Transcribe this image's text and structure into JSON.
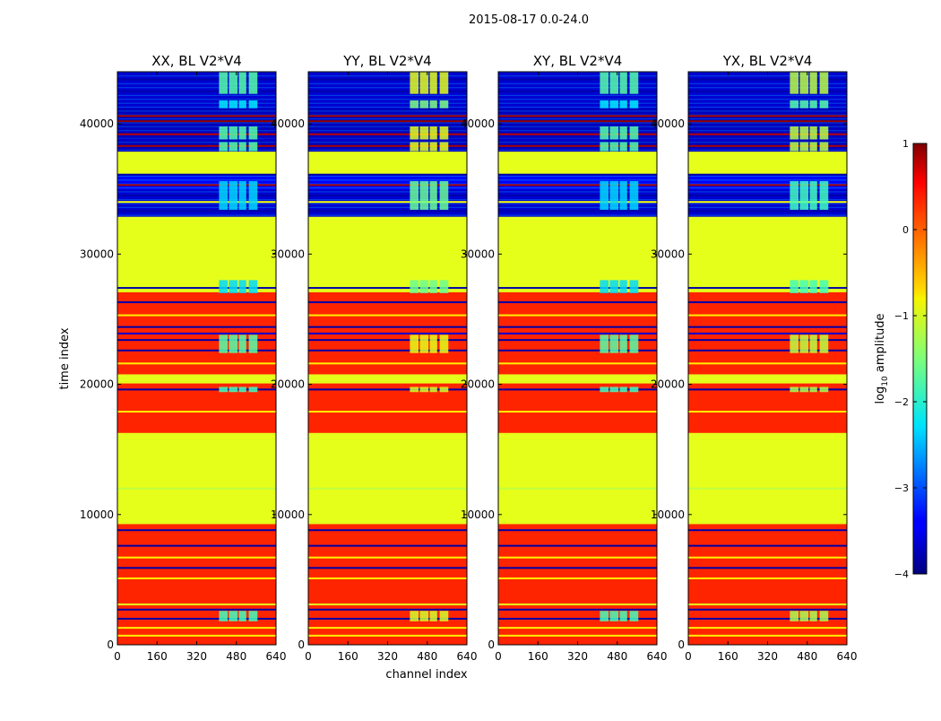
{
  "suptitle": "2015-08-17 0.0-24.0",
  "xlabel": "channel index",
  "ylabel": "time index",
  "chart_data": {
    "type": "heatmap",
    "xlim": [
      0,
      640
    ],
    "ylim": [
      0,
      44000
    ],
    "xticks": [
      0,
      160,
      320,
      480,
      640
    ],
    "yticks": [
      0,
      10000,
      20000,
      30000,
      40000
    ],
    "colorbar": {
      "label": "log",
      "label_sub": "10",
      "label_rest": " amplitude",
      "range": [
        -4,
        1
      ],
      "ticks": [
        "−4",
        "−3",
        "−2",
        "−1",
        "0",
        "1"
      ]
    },
    "bands": [
      {
        "y0": 0,
        "y1": 9300,
        "level": 0.2
      },
      {
        "y0": 9300,
        "y1": 16300,
        "level": -1.0
      },
      {
        "y0": 16300,
        "y1": 20100,
        "level": 0.2
      },
      {
        "y0": 20100,
        "y1": 20800,
        "level": -1.0
      },
      {
        "y0": 20800,
        "y1": 27100,
        "level": 0.2
      },
      {
        "y0": 27100,
        "y1": 28000,
        "level": -1.0
      },
      {
        "y0": 28000,
        "y1": 32900,
        "level": -1.0
      },
      {
        "y0": 32900,
        "y1": 35000,
        "level": -3.6
      },
      {
        "y0": 35000,
        "y1": 36100,
        "level": -3.4
      },
      {
        "y0": 36100,
        "y1": 37900,
        "level": -1.0
      },
      {
        "y0": 37900,
        "y1": 41200,
        "level": -3.7
      },
      {
        "y0": 41200,
        "y1": 44000,
        "level": -3.6
      }
    ],
    "lines": [
      {
        "y": 700,
        "level": -0.8
      },
      {
        "y": 1300,
        "level": -0.8
      },
      {
        "y": 2000,
        "level": -3.8
      },
      {
        "y": 2700,
        "level": -3.8
      },
      {
        "y": 3100,
        "level": -1.0
      },
      {
        "y": 5100,
        "level": -0.8
      },
      {
        "y": 5900,
        "level": -3.8
      },
      {
        "y": 6700,
        "level": -0.8
      },
      {
        "y": 7600,
        "level": -3.8
      },
      {
        "y": 8800,
        "level": -3.8
      },
      {
        "y": 12000,
        "level": -1.2
      },
      {
        "y": 17900,
        "level": -0.8
      },
      {
        "y": 19600,
        "level": -3.8
      },
      {
        "y": 21600,
        "level": -0.8
      },
      {
        "y": 22600,
        "level": -3.8
      },
      {
        "y": 23400,
        "level": -3.8
      },
      {
        "y": 23900,
        "level": -3.6
      },
      {
        "y": 24400,
        "level": -3.8
      },
      {
        "y": 25300,
        "level": -0.8
      },
      {
        "y": 26300,
        "level": -3.8
      },
      {
        "y": 27400,
        "level": -3.8
      },
      {
        "y": 33300,
        "level": -3.8
      },
      {
        "y": 34000,
        "level": -0.9
      },
      {
        "y": 34500,
        "level": -3.8
      },
      {
        "y": 35300,
        "level": 0.8
      },
      {
        "y": 36100,
        "level": -3.8
      },
      {
        "y": 38300,
        "level": 0.8
      },
      {
        "y": 38800,
        "level": -3.6
      },
      {
        "y": 39200,
        "level": 0.7
      },
      {
        "y": 40200,
        "level": 0.9
      },
      {
        "y": 40600,
        "level": 0.8
      },
      {
        "y": 41700,
        "level": -3.6
      },
      {
        "y": 42500,
        "level": -3.8
      },
      {
        "y": 43400,
        "level": -3.8
      }
    ],
    "patches": [
      {
        "y0": 1800,
        "y1": 2600,
        "level": -1.8
      },
      {
        "y0": 19400,
        "y1": 19800,
        "level": -1.8
      },
      {
        "y0": 22400,
        "y1": 23800,
        "level": -1.7
      },
      {
        "y0": 27000,
        "y1": 28000,
        "level": -2.3
      },
      {
        "y0": 33400,
        "y1": 35600,
        "level": -2.3
      },
      {
        "y0": 37900,
        "y1": 38600,
        "level": -1.7
      },
      {
        "y0": 38800,
        "y1": 39800,
        "level": -1.7
      },
      {
        "y0": 41200,
        "y1": 41800,
        "level": -2.2
      },
      {
        "y0": 42300,
        "y1": 44000,
        "level": -1.7
      }
    ],
    "patch_columns": [
      [
        410,
        445
      ],
      [
        450,
        485
      ],
      [
        490,
        520
      ],
      [
        530,
        565
      ]
    ],
    "panels": [
      {
        "title": "XX, BL V2*V4",
        "patch_offset": 0
      },
      {
        "title": "YY, BL V2*V4",
        "patch_offset": 0.7
      },
      {
        "title": "XY, BL V2*V4",
        "patch_offset": 0
      },
      {
        "title": "YX, BL V2*V4",
        "patch_offset": 0.5
      }
    ]
  }
}
